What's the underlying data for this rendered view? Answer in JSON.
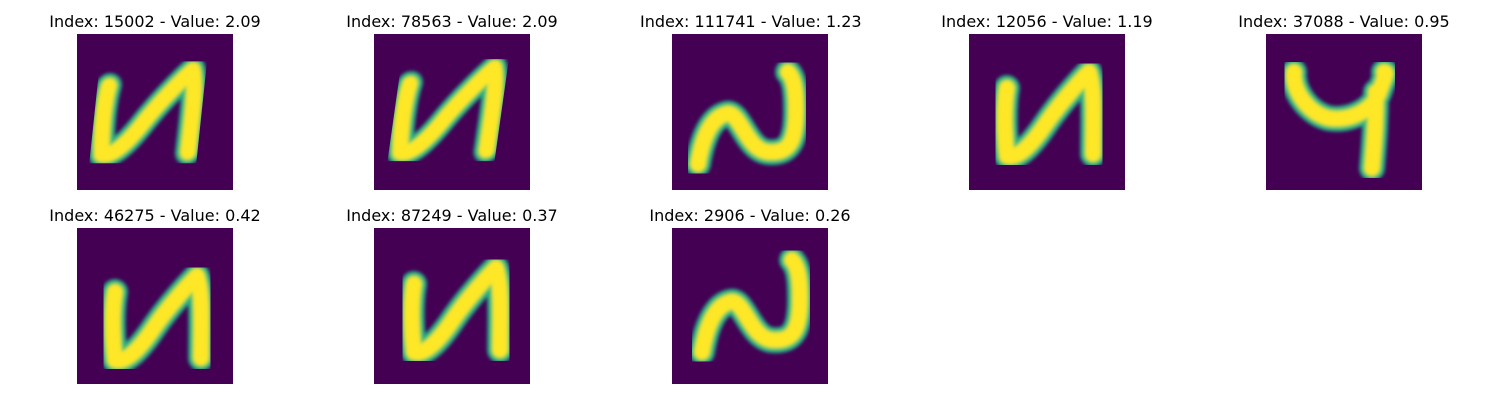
{
  "colors": {
    "background": "#440154",
    "stroke_core": "#fde725",
    "stroke_edge": "#21a685",
    "stroke_mid": "#5ec962"
  },
  "panels": [
    {
      "title": "Index: 15002 - Value: 2.09",
      "glyph": "u-hook"
    },
    {
      "title": "Index: 78563 - Value: 2.09",
      "glyph": "u-hook"
    },
    {
      "title": "Index: 111741 - Value: 1.23",
      "glyph": "n-wave"
    },
    {
      "title": "Index: 12056 - Value: 1.19",
      "glyph": "u-hook"
    },
    {
      "title": "Index: 37088 - Value: 0.95",
      "glyph": "y-hook"
    },
    {
      "title": "Index: 46275 - Value: 0.42",
      "glyph": "u-hook"
    },
    {
      "title": "Index: 87249 - Value: 0.37",
      "glyph": "u-hook"
    },
    {
      "title": "Index: 2906 - Value: 0.26",
      "glyph": "n-wave"
    }
  ]
}
